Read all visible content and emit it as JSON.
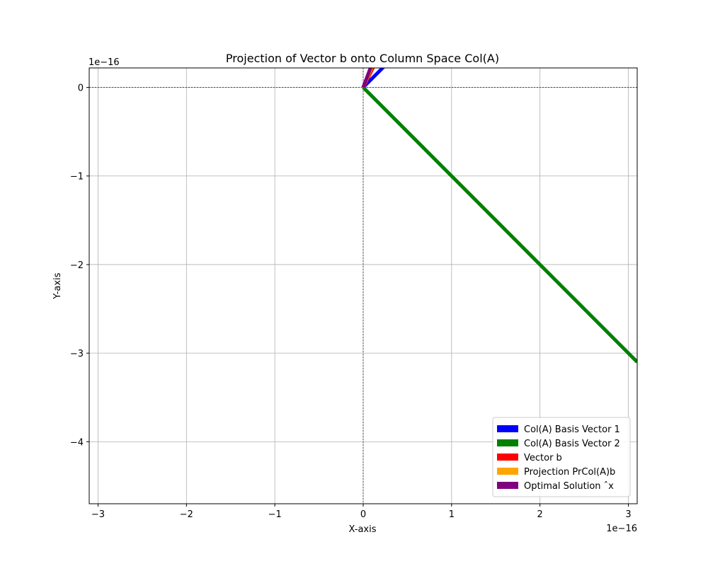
{
  "chart_data": {
    "type": "line",
    "title": "Projection of Vector b onto Column Space Col(A)",
    "xlabel": "X-axis",
    "ylabel": "Y-axis",
    "x_offset_text": "1e−16",
    "y_offset_text": "1e−16",
    "xlim": [
      -3.1,
      3.1
    ],
    "ylim": [
      -4.7,
      0.22
    ],
    "xticks": [
      {
        "value": -3,
        "label": "−3"
      },
      {
        "value": -2,
        "label": "−2"
      },
      {
        "value": -1,
        "label": "−1"
      },
      {
        "value": 0,
        "label": "0"
      },
      {
        "value": 1,
        "label": "1"
      },
      {
        "value": 2,
        "label": "2"
      },
      {
        "value": 3,
        "label": "3"
      }
    ],
    "yticks": [
      {
        "value": 0,
        "label": "0"
      },
      {
        "value": -1,
        "label": "−1"
      },
      {
        "value": -2,
        "label": "−2"
      },
      {
        "value": -3,
        "label": "−3"
      },
      {
        "value": -4,
        "label": "−4"
      }
    ],
    "grid": true,
    "legend_position": "lower-right",
    "series": [
      {
        "name": "Col(A) Basis Vector 1",
        "color": "#0000ff",
        "x": [
          0,
          0.24
        ],
        "y": [
          0,
          0.24
        ]
      },
      {
        "name": "Col(A) Basis Vector 2",
        "color": "#008000",
        "x": [
          0,
          3.1
        ],
        "y": [
          0,
          -3.1
        ]
      },
      {
        "name": "Vector b",
        "color": "#ff0000",
        "x": [
          0,
          0.12
        ],
        "y": [
          0,
          0.24
        ]
      },
      {
        "name": "Projection PrCol(A)b",
        "color": "#ffa500",
        "x": [
          0,
          0.1
        ],
        "y": [
          0,
          0.24
        ]
      },
      {
        "name": "Optimal Solution ˆx",
        "color": "#800080",
        "x": [
          0,
          0.09
        ],
        "y": [
          0,
          0.24
        ]
      }
    ]
  }
}
